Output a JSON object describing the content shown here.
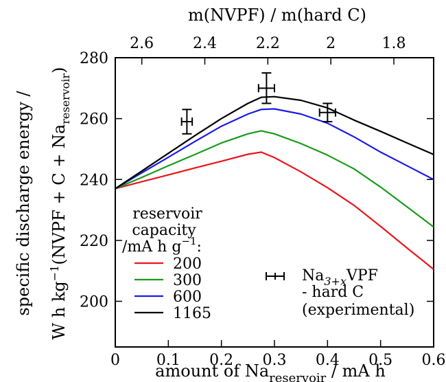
{
  "chart_data": {
    "type": "line",
    "x": [
      0,
      0.05,
      0.1,
      0.15,
      0.2,
      0.25,
      0.275,
      0.3,
      0.35,
      0.4,
      0.45,
      0.5,
      0.55,
      0.6
    ],
    "series": [
      {
        "name": "200",
        "color": "#e8161b",
        "values": [
          237.0,
          239.3,
          241.5,
          243.8,
          246.0,
          248.3,
          249.0,
          247.2,
          242.5,
          237.3,
          231.5,
          224.6,
          217.5,
          210.5
        ]
      },
      {
        "name": "300",
        "color": "#1a9a1a",
        "values": [
          237.0,
          240.7,
          244.5,
          248.2,
          252.0,
          255.0,
          256.0,
          255.0,
          251.8,
          248.0,
          243.5,
          237.5,
          231.0,
          224.4
        ]
      },
      {
        "name": "600",
        "color": "#1a1ae6",
        "values": [
          237.0,
          242.2,
          247.3,
          252.5,
          257.5,
          261.5,
          263.0,
          263.2,
          261.5,
          258.5,
          254.0,
          249.0,
          244.5,
          240.0
        ]
      },
      {
        "name": "1165",
        "color": "#000000",
        "values": [
          237.0,
          242.8,
          248.6,
          254.4,
          260.0,
          265.0,
          267.0,
          267.2,
          266.0,
          263.5,
          259.5,
          255.8,
          252.0,
          248.2
        ]
      }
    ],
    "experimental": {
      "name_main": "Na",
      "name_sub": "3+x",
      "name_suffix": "VPF",
      "name_line2": "- hard C",
      "name_line3": "(experimental)",
      "points": [
        {
          "x": 0.135,
          "y": 259,
          "xerr": 0.01,
          "yerr": 4
        },
        {
          "x": 0.285,
          "y": 270,
          "xerr": 0.015,
          "yerr": 5
        },
        {
          "x": 0.4,
          "y": 262,
          "xerr": 0.015,
          "yerr": 3
        }
      ]
    },
    "xlim": [
      0,
      0.6
    ],
    "ylim": [
      185,
      280
    ],
    "xticks": [
      "0",
      "0.1",
      "0.2",
      "0.3",
      "0.4",
      "0.5",
      "0.6"
    ],
    "xtick_values": [
      0,
      0.1,
      0.2,
      0.3,
      0.4,
      0.5,
      0.6
    ],
    "yticks": [
      "200",
      "220",
      "240",
      "260",
      "280"
    ],
    "ytick_values": [
      200,
      220,
      240,
      260,
      280
    ],
    "top_axis": {
      "label": "m(NVPF)  /  m(hard C)",
      "tick_labels": [
        "2.6",
        "2.4",
        "2.2",
        "2",
        "1.8"
      ],
      "tick_values": [
        2.6,
        2.4,
        2.2,
        2.0,
        1.8
      ]
    },
    "xlabel": {
      "main": "amount of Na",
      "sub": "reservoir",
      "tail": " / mA h"
    },
    "ylabel": {
      "line1": "specific discharge energy /",
      "line2_main": "W h kg",
      "line2_sup": "−1",
      "line2_mid": "(NVPF + C + Na",
      "line2_sub": "reservoir",
      "line2_end": ")"
    },
    "legend": {
      "title_line1": "reservoir",
      "title_line2": "capacity",
      "title_line3_main": "/mA h g",
      "title_line3_sup": "−1",
      "title_line3_end": ":",
      "position": "bottom-left"
    },
    "grid": false
  }
}
